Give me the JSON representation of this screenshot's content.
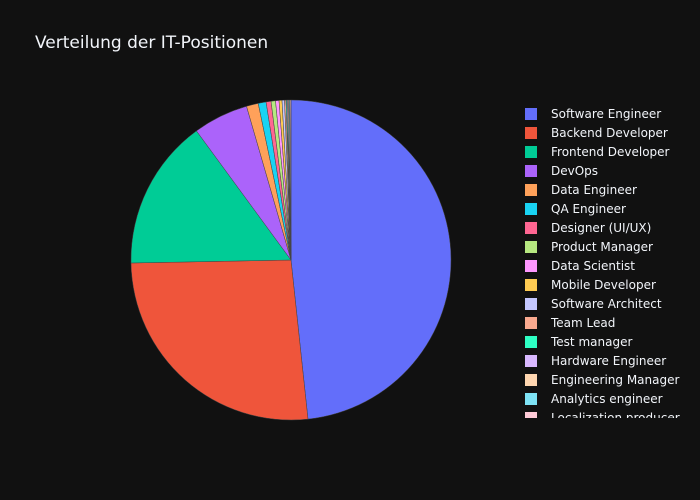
{
  "chart_data": {
    "type": "pie",
    "title": "Verteilung der IT-Positionen",
    "direction": "clockwise",
    "start_angle_deg": 0,
    "background": "#111111",
    "slices": [
      {
        "label": "Software Engineer",
        "value": 48.5,
        "color": "#636efa"
      },
      {
        "label": "Backend Developer",
        "value": 26.5,
        "color": "#EF553B"
      },
      {
        "label": "Frontend Developer",
        "value": 15.3,
        "color": "#00cc96"
      },
      {
        "label": "DevOps",
        "value": 5.6,
        "color": "#ab63fa"
      },
      {
        "label": "Data Engineer",
        "value": 1.2,
        "color": "#FFA15A"
      },
      {
        "label": "QA Engineer",
        "value": 0.8,
        "color": "#19d3f3"
      },
      {
        "label": "Designer (UI/UX)",
        "value": 0.5,
        "color": "#FF6692"
      },
      {
        "label": "Product Manager",
        "value": 0.45,
        "color": "#B6E880"
      },
      {
        "label": "Data Scientist",
        "value": 0.35,
        "color": "#FF97FF"
      },
      {
        "label": "Mobile Developer",
        "value": 0.3,
        "color": "#FECB52"
      },
      {
        "label": "Software Architect",
        "value": 0.25,
        "color": "#c4c7ff"
      },
      {
        "label": "Team Lead",
        "value": 0.15,
        "color": "#f9a98f"
      },
      {
        "label": "Test manager",
        "value": 0.1,
        "color": "#2effc4"
      },
      {
        "label": "Hardware Engineer",
        "value": 0.1,
        "color": "#d9b8ff"
      },
      {
        "label": "Engineering Manager",
        "value": 0.1,
        "color": "#ffd6b0"
      },
      {
        "label": "Analytics engineer",
        "value": 0.1,
        "color": "#7ee3f5"
      },
      {
        "label": "Localization producer",
        "value": 0.1,
        "color": "#ffcad7"
      }
    ]
  }
}
